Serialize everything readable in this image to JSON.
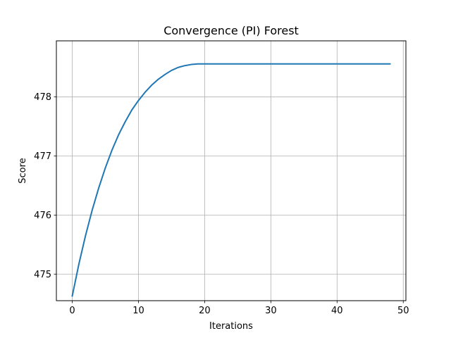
{
  "chart_data": {
    "type": "line",
    "title": "Convergence (PI) Forest",
    "xlabel": "Iterations",
    "ylabel": "Score",
    "xlim": [
      -2.4,
      50.4
    ],
    "ylim": [
      474.55,
      478.95
    ],
    "xticks": [
      0,
      10,
      20,
      30,
      40,
      50
    ],
    "yticks": [
      475,
      476,
      477,
      478
    ],
    "grid": true,
    "line_color": "#1f77b4",
    "series": [
      {
        "x": [
          0,
          1,
          2,
          3,
          4,
          5,
          6,
          7,
          8,
          9,
          10,
          11,
          12,
          13,
          14,
          15,
          16,
          17,
          18,
          19,
          20,
          21,
          22,
          23,
          24,
          25,
          26,
          27,
          28,
          29,
          30,
          31,
          32,
          33,
          34,
          35,
          36,
          37,
          38,
          39,
          40,
          41,
          42,
          43,
          44,
          45,
          46,
          47,
          48
        ],
        "values": [
          474.63,
          475.17,
          475.65,
          476.08,
          476.46,
          476.8,
          477.1,
          477.36,
          477.58,
          477.78,
          477.94,
          478.08,
          478.2,
          478.3,
          478.38,
          478.45,
          478.5,
          478.53,
          478.55,
          478.56,
          478.56,
          478.56,
          478.56,
          478.56,
          478.56,
          478.56,
          478.56,
          478.56,
          478.56,
          478.56,
          478.56,
          478.56,
          478.56,
          478.56,
          478.56,
          478.56,
          478.56,
          478.56,
          478.56,
          478.56,
          478.56,
          478.56,
          478.56,
          478.56,
          478.56,
          478.56,
          478.56,
          478.56,
          478.56
        ]
      }
    ]
  }
}
